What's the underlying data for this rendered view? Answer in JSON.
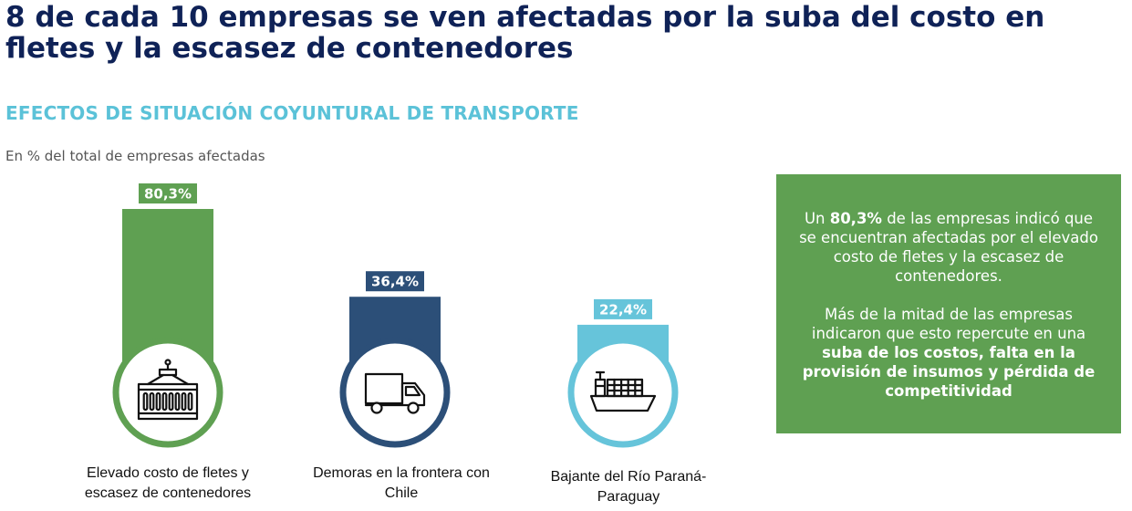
{
  "title": "8 de cada 10 empresas se ven afectadas por la suba del costo en fletes y la escasez de contenedores",
  "subtitle": "EFECTOS DE SITUACIÓN COYUNTURAL DE TRANSPORTE",
  "unit_label": "En % del total de empresas afectadas",
  "colors": {
    "title": "#0f2257",
    "subtitle": "#5bc2d8",
    "green": "#5fa052",
    "navy": "#2c4f78",
    "light_blue": "#66c4da"
  },
  "chart_data": {
    "type": "bar",
    "categories": [
      "Elevado costo de fletes y escasez de contenedores",
      "Demoras en la frontera con Chile",
      "Bajante del Río Paraná-Paraguay"
    ],
    "values": [
      80.3,
      36.4,
      22.4
    ],
    "value_labels": [
      "80,3%",
      "36,4%",
      "22,4%"
    ],
    "unit": "%",
    "icons": [
      "container-icon",
      "truck-icon",
      "ship-icon"
    ],
    "series_colors": [
      "#5fa052",
      "#2c4f78",
      "#66c4da"
    ]
  },
  "categories_display": [
    [
      "Elevado costo de fletes y",
      "escasez de contenedores"
    ],
    [
      "Demoras en la frontera con",
      "Chile"
    ],
    [
      "Bajante del Río Paraná-",
      "Paraguay"
    ]
  ],
  "info_box": {
    "p1_pre": "Un ",
    "p1_bold": "80,3%",
    "p1_post": " de las empresas indicó que se encuentran afectadas por el elevado costo de fletes y la escasez de contenedores.",
    "p2_pre": "Más de la mitad de las empresas indicaron que esto repercute en una ",
    "p2_bold": "suba de los costos, falta en la provisión de insumos y pérdida de competitividad"
  }
}
